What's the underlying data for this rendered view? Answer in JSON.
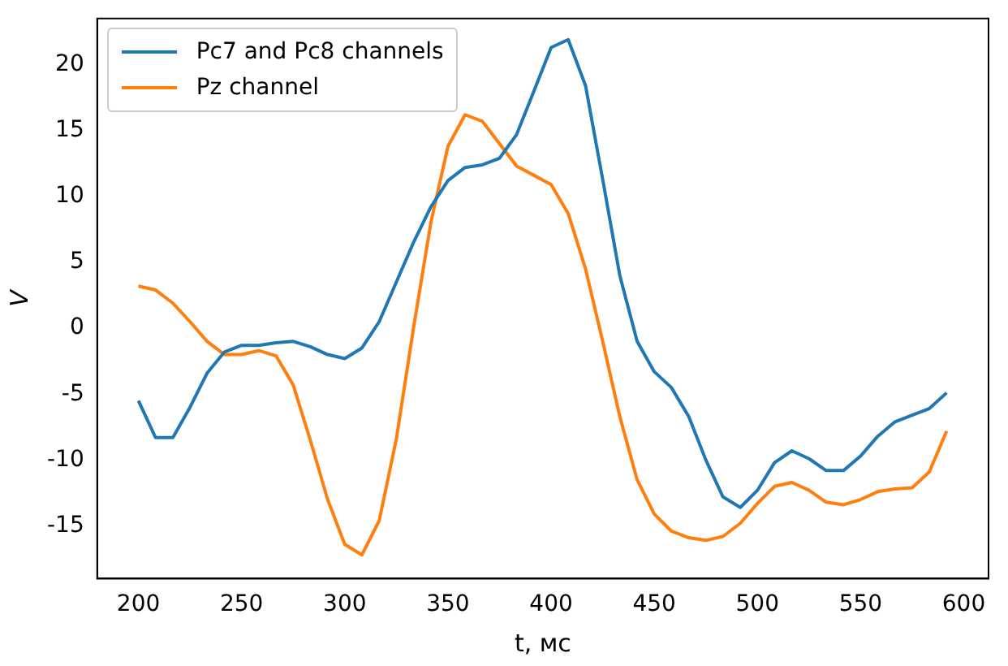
{
  "chart_data": {
    "type": "line",
    "xlabel": "t, мс",
    "ylabel": "V",
    "x": [
      200,
      208.3,
      216.7,
      225,
      233.3,
      241.7,
      250,
      258.3,
      266.7,
      275,
      283.3,
      291.7,
      300,
      308.3,
      316.7,
      325,
      333.3,
      341.7,
      350,
      358.3,
      366.7,
      375,
      383.3,
      391.7,
      400,
      408.3,
      416.7,
      425,
      433.3,
      441.7,
      450,
      458.3,
      466.7,
      475,
      483.3,
      491.7,
      500,
      508.3,
      516.7,
      525,
      533.3,
      541.7,
      550,
      558.3,
      566.7,
      575,
      583.3,
      591.7
    ],
    "series": [
      {
        "name": "Pc7 and Pc8 channels",
        "color": "#1f77b4",
        "values": [
          -5.5,
          -8.3,
          -8.3,
          -6,
          -3.4,
          -1.8,
          -1.3,
          -1.3,
          -1.1,
          -1.0,
          -1.4,
          -2.0,
          -2.3,
          -1.5,
          0.5,
          3.5,
          6.5,
          9.2,
          11.2,
          12.2,
          12.4,
          12.9,
          14.7,
          18,
          21.3,
          21.9,
          18.4,
          11.3,
          4,
          -1.0,
          -3.3,
          -4.5,
          -6.7,
          -10,
          -12.8,
          -13.6,
          -12.3,
          -10.2,
          -9.3,
          -9.9,
          -10.8,
          -10.8,
          -9.7,
          -8.2,
          -7.1,
          -6.6,
          -6.1,
          -4.9
        ]
      },
      {
        "name": "Pz channel",
        "color": "#ff7f0e",
        "values": [
          3.2,
          2.9,
          1.9,
          0.5,
          -1.0,
          -2.0,
          -2.0,
          -1.7,
          -2.1,
          -4.3,
          -8.5,
          -13,
          -16.4,
          -17.2,
          -14.6,
          -8.4,
          0,
          8,
          13.8,
          16.2,
          15.7,
          14,
          12.3,
          11.6,
          10.9,
          8.7,
          4.5,
          -1,
          -6.7,
          -11.5,
          -14.1,
          -15.4,
          -15.9,
          -16.1,
          -15.8,
          -14.8,
          -13.3,
          -12,
          -11.7,
          -12.3,
          -13.2,
          -13.4,
          -13,
          -12.4,
          -12.2,
          -12.1,
          -10.9,
          -7.8
        ]
      }
    ],
    "xlim": [
      180,
      612
    ],
    "ylim": [
      -19,
      23.5
    ],
    "xticks": [
      200,
      250,
      300,
      350,
      400,
      450,
      500,
      550,
      600
    ],
    "yticks": [
      -15,
      -10,
      -5,
      0,
      5,
      10,
      15,
      20
    ],
    "grid": false,
    "legend": "top left",
    "marker": "none",
    "line_style": "solid"
  }
}
